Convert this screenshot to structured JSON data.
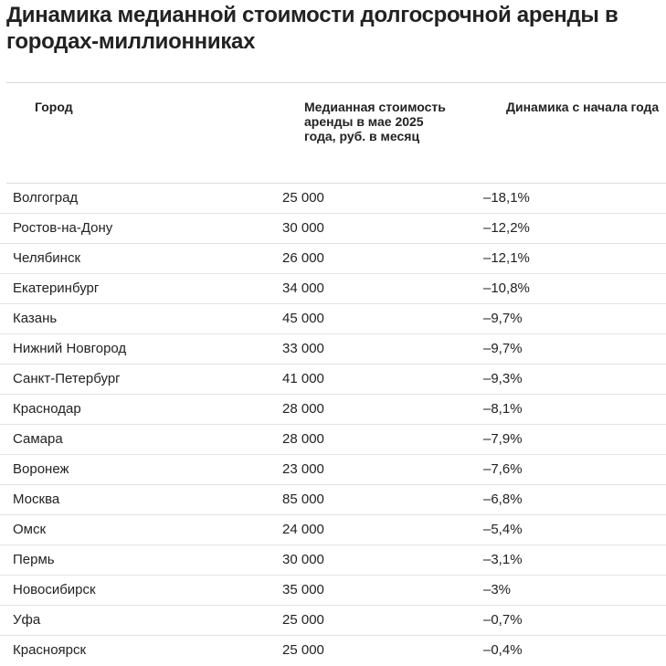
{
  "title": "Динамика медианной стоимости долгосрочной аренды в городах-миллионниках",
  "columns": {
    "city": "Город",
    "price": "Медианная стоимость аренды в мае 2025 года, руб. в месяц",
    "change": "Динамика с начала года"
  },
  "rows": [
    {
      "city": "Волгоград",
      "price": "25 000",
      "change": "–18,1%"
    },
    {
      "city": "Ростов-на-Дону",
      "price": "30 000",
      "change": "–12,2%"
    },
    {
      "city": "Челябинск",
      "price": "26 000",
      "change": "–12,1%"
    },
    {
      "city": "Екатеринбург",
      "price": "34 000",
      "change": "–10,8%"
    },
    {
      "city": "Казань",
      "price": "45 000",
      "change": "–9,7%"
    },
    {
      "city": "Нижний Новгород",
      "price": "33 000",
      "change": "–9,7%"
    },
    {
      "city": "Санкт-Петербург",
      "price": "41 000",
      "change": "–9,3%"
    },
    {
      "city": "Краснодар",
      "price": "28 000",
      "change": "–8,1%"
    },
    {
      "city": "Самара",
      "price": "28 000",
      "change": "–7,9%"
    },
    {
      "city": "Воронеж",
      "price": "23 000",
      "change": "–7,6%"
    },
    {
      "city": "Москва",
      "price": "85 000",
      "change": "–6,8%"
    },
    {
      "city": "Омск",
      "price": "24 000",
      "change": "–5,4%"
    },
    {
      "city": "Пермь",
      "price": "30 000",
      "change": "–3,1%"
    },
    {
      "city": "Новосибирск",
      "price": "35 000",
      "change": "–3%"
    },
    {
      "city": "Уфа",
      "price": "25 000",
      "change": "–0,7%"
    },
    {
      "city": "Красноярск",
      "price": "25 000",
      "change": "–0,4%"
    }
  ],
  "chart_data": {
    "type": "table",
    "title": "Динамика медианной стоимости долгосрочной аренды в городах-миллионниках",
    "columns": [
      "Город",
      "Медианная стоимость аренды в мае 2025 года, руб. в месяц",
      "Динамика с начала года"
    ],
    "categories": [
      "Волгоград",
      "Ростов-на-Дону",
      "Челябинск",
      "Екатеринбург",
      "Казань",
      "Нижний Новгород",
      "Санкт-Петербург",
      "Краснодар",
      "Самара",
      "Воронеж",
      "Москва",
      "Омск",
      "Пермь",
      "Новосибирск",
      "Уфа",
      "Красноярск"
    ],
    "series": [
      {
        "name": "Медианная стоимость аренды в мае 2025 года, руб. в месяц",
        "values": [
          25000,
          30000,
          26000,
          34000,
          45000,
          33000,
          41000,
          28000,
          28000,
          23000,
          85000,
          24000,
          30000,
          35000,
          25000,
          25000
        ]
      },
      {
        "name": "Динамика с начала года",
        "values": [
          -18.1,
          -12.2,
          -12.1,
          -10.8,
          -9.7,
          -9.7,
          -9.3,
          -8.1,
          -7.9,
          -7.6,
          -6.8,
          -5.4,
          -3.1,
          -3.0,
          -0.7,
          -0.4
        ]
      }
    ]
  }
}
